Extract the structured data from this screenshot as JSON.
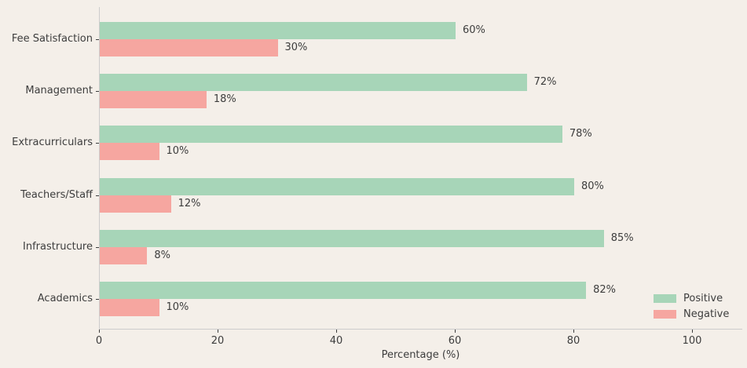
{
  "chart_data": {
    "type": "bar",
    "orientation": "horizontal",
    "title": "",
    "xlabel": "Percentage (%)",
    "ylabel": "",
    "categories": [
      "Fee Satisfaction",
      "Management",
      "Extracurriculars",
      "Teachers/Staff",
      "Infrastructure",
      "Academics"
    ],
    "series": [
      {
        "name": "Positive",
        "color": "#a7d5b8",
        "values": [
          60,
          72,
          78,
          80,
          85,
          82
        ]
      },
      {
        "name": "Negative",
        "color": "#f6a6a0",
        "values": [
          30,
          18,
          10,
          12,
          8,
          10
        ]
      }
    ],
    "value_label_suffix": "%",
    "x_ticks": [
      0,
      20,
      40,
      60,
      80,
      100
    ],
    "xlim": [
      0,
      108.5
    ],
    "grid": "off",
    "legend_position": "lower right",
    "colors": {
      "background": "#f4efe9",
      "text": "#3d3d3d",
      "spine": "#cccccc",
      "tick": "#3d3d3d"
    }
  }
}
